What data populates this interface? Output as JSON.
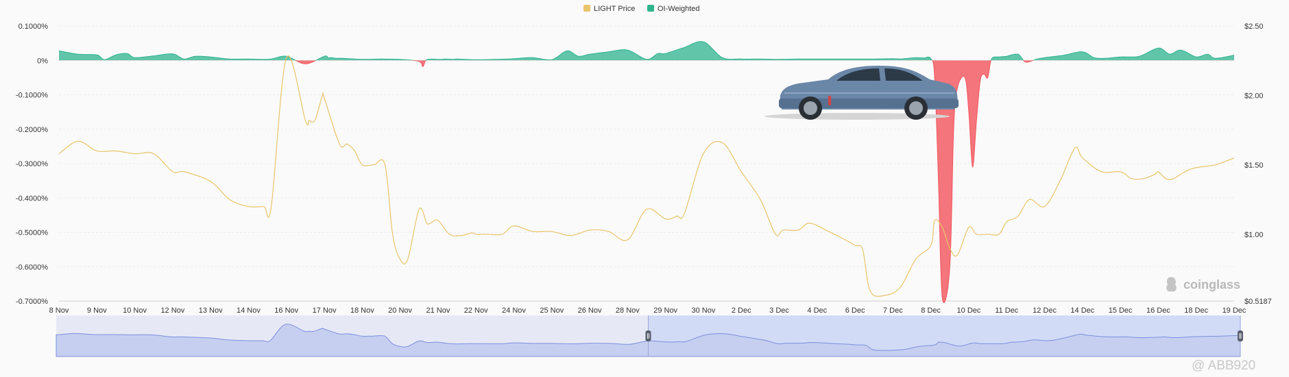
{
  "chart_data": {
    "type": "line",
    "legend": [
      {
        "name": "LIGHT Price",
        "color": "#e9c46a"
      },
      {
        "name": "OI-Weighted",
        "color": "#2db38e"
      }
    ],
    "legend_placement": "top-center",
    "grid": true,
    "x_tick_labels": [
      "8 Nov",
      "9 Nov",
      "10 Nov",
      "12 Nov",
      "13 Nov",
      "14 Nov",
      "16 Nov",
      "17 Nov",
      "18 Nov",
      "20 Nov",
      "21 Nov",
      "22 Nov",
      "24 Nov",
      "25 Nov",
      "26 Nov",
      "28 Nov",
      "29 Nov",
      "30 Nov",
      "2 Dec",
      "3 Dec",
      "4 Dec",
      "6 Dec",
      "7 Dec",
      "8 Dec",
      "10 Dec",
      "11 Dec",
      "12 Dec",
      "14 Dec",
      "15 Dec",
      "16 Dec",
      "18 Dec",
      "19 Dec"
    ],
    "y_left": {
      "unit": "%",
      "range": [
        -0.7,
        0.1
      ],
      "tick_values": [
        0.1,
        0,
        -0.1,
        -0.2,
        -0.3,
        -0.4,
        -0.5,
        -0.6,
        -0.7
      ],
      "tick_labels": [
        "0.1000%",
        "0%",
        "-0.1000%",
        "-0.2000%",
        "-0.3000%",
        "-0.4000%",
        "-0.5000%",
        "-0.6000%",
        "-0.7000%"
      ]
    },
    "y_right": {
      "unit": "$",
      "range": [
        0.5187,
        2.5
      ],
      "tick_values": [
        2.5,
        2.0,
        1.5,
        1.0,
        0.5187
      ],
      "tick_labels": [
        "$2.50",
        "$2.00",
        "$1.50",
        "$1.00",
        "$0.5187"
      ]
    },
    "series": [
      {
        "name": "OI-Weighted",
        "axis": "left",
        "positive_color": "#2db38e",
        "negative_color": "#f2545b",
        "x": [
          0,
          0.5,
          1,
          1.2,
          1.5,
          1.8,
          2,
          2.5,
          3,
          3.3,
          3.6,
          4,
          4.5,
          5,
          5.3,
          5.6,
          6,
          6.5,
          7,
          7.1,
          7.2,
          7.3,
          7.5,
          8,
          8.5,
          9,
          9.5,
          9.6,
          9.7,
          10,
          10.1,
          10.2,
          10.4,
          10.5,
          11,
          11.5,
          12,
          12.5,
          13,
          13.4,
          13.7,
          14,
          14.5,
          15,
          15.5,
          15.8,
          16,
          16.5,
          17,
          17.5,
          18,
          18.5,
          19,
          19.5,
          20,
          20.5,
          21,
          21.5,
          22,
          22.2,
          22.4,
          22.6,
          22.8,
          23,
          23.1,
          23.2,
          23.3,
          23.5,
          23.6,
          23.7,
          23.9,
          24,
          24.1,
          24.2,
          24.3,
          24.4,
          24.5,
          24.6,
          24.8,
          25,
          25.3,
          25.5,
          25.8,
          26,
          26.5,
          27,
          27.3,
          27.6,
          28,
          28.5,
          29,
          29.3,
          29.6,
          30,
          30.3,
          30.5,
          31
        ],
        "values": [
          0.028,
          0.018,
          0.016,
          0.002,
          0.016,
          0.02,
          0.008,
          0.013,
          0.019,
          0.004,
          0.012,
          0.01,
          0.004,
          0.004,
          0.003,
          0.004,
          0.012,
          -0.01,
          0.012,
          0.008,
          0.008,
          0.006,
          0.006,
          0.003,
          0.004,
          0.003,
          -0.003,
          -0.018,
          0.002,
          0.003,
          0.003,
          0.004,
          0.003,
          0.004,
          0.002,
          0.003,
          0.005,
          0.008,
          0.002,
          0.028,
          0.012,
          0.018,
          0.025,
          0.03,
          0.003,
          0.02,
          0.02,
          0.038,
          0.054,
          0.008,
          0.004,
          0.004,
          0.003,
          0.004,
          0.004,
          0.004,
          0.004,
          0.004,
          0.005,
          0.004,
          0.006,
          0.008,
          0.007,
          0.005,
          -0.05,
          -0.35,
          -0.69,
          -0.6,
          -0.2,
          -0.08,
          -0.05,
          -0.15,
          -0.31,
          -0.18,
          -0.06,
          -0.04,
          -0.05,
          0.004,
          0.01,
          0.012,
          0.018,
          -0.005,
          0.004,
          0.008,
          0.015,
          0.025,
          0.008,
          0.006,
          0.01,
          0.012,
          0.036,
          0.018,
          0.03,
          0.01,
          0.018,
          0.006,
          0.015
        ]
      },
      {
        "name": "LIGHT Price",
        "axis": "right",
        "color": "#e9c46a",
        "x": [
          0,
          0.5,
          1,
          1.5,
          2,
          2.5,
          3,
          3.3,
          4,
          4.5,
          5,
          5.4,
          5.6,
          6,
          6.5,
          6.6,
          6.75,
          6.95,
          7,
          7.4,
          7.6,
          7.8,
          8,
          8.3,
          8.6,
          8.8,
          9,
          9.2,
          9.5,
          9.7,
          9.8,
          10,
          10.3,
          10.6,
          10.9,
          11,
          11.3,
          11.7,
          12,
          12.5,
          13,
          13.5,
          14,
          14.5,
          15,
          15.5,
          16,
          16.3,
          16.5,
          17,
          17.5,
          18,
          18.5,
          18.9,
          19.1,
          19.5,
          19.8,
          20.3,
          20.6,
          21,
          21.2,
          21.4,
          21.8,
          22.2,
          22.6,
          23,
          23.1,
          23.3,
          23.5,
          23.7,
          24,
          24.2,
          24.5,
          24.8,
          25,
          25.3,
          25.6,
          26,
          26.4,
          26.8,
          27,
          27.5,
          28,
          28.3,
          28.6,
          28.9,
          29,
          29.2,
          29.4,
          29.7,
          30,
          30.5,
          31
        ],
        "values": [
          1.58,
          1.67,
          1.6,
          1.6,
          1.58,
          1.58,
          1.45,
          1.45,
          1.38,
          1.25,
          1.2,
          1.2,
          1.2,
          2.27,
          1.82,
          1.82,
          1.82,
          2.0,
          1.98,
          1.65,
          1.65,
          1.6,
          1.5,
          1.5,
          1.5,
          1.0,
          0.82,
          0.82,
          1.18,
          1.08,
          1.08,
          1.1,
          1.0,
          0.99,
          1.01,
          1.0,
          1.0,
          1.0,
          1.06,
          1.02,
          1.02,
          0.99,
          1.03,
          1.02,
          0.96,
          1.18,
          1.11,
          1.13,
          1.15,
          1.58,
          1.66,
          1.45,
          1.25,
          1.0,
          1.03,
          1.03,
          1.08,
          1.02,
          0.98,
          0.92,
          0.89,
          0.59,
          0.56,
          0.62,
          0.82,
          0.92,
          1.1,
          1.05,
          0.9,
          0.85,
          1.05,
          1.0,
          1.0,
          1.0,
          1.09,
          1.13,
          1.25,
          1.2,
          1.38,
          1.62,
          1.55,
          1.45,
          1.45,
          1.4,
          1.4,
          1.43,
          1.45,
          1.4,
          1.4,
          1.45,
          1.48,
          1.5,
          1.55
        ]
      }
    ]
  },
  "navigator": {
    "fill_color": "#c6cff0",
    "line_color": "#7e8ede",
    "selected_range": [
      0.5,
      1.0
    ]
  },
  "watermark": "coinglass",
  "credit": "@ ABB920"
}
